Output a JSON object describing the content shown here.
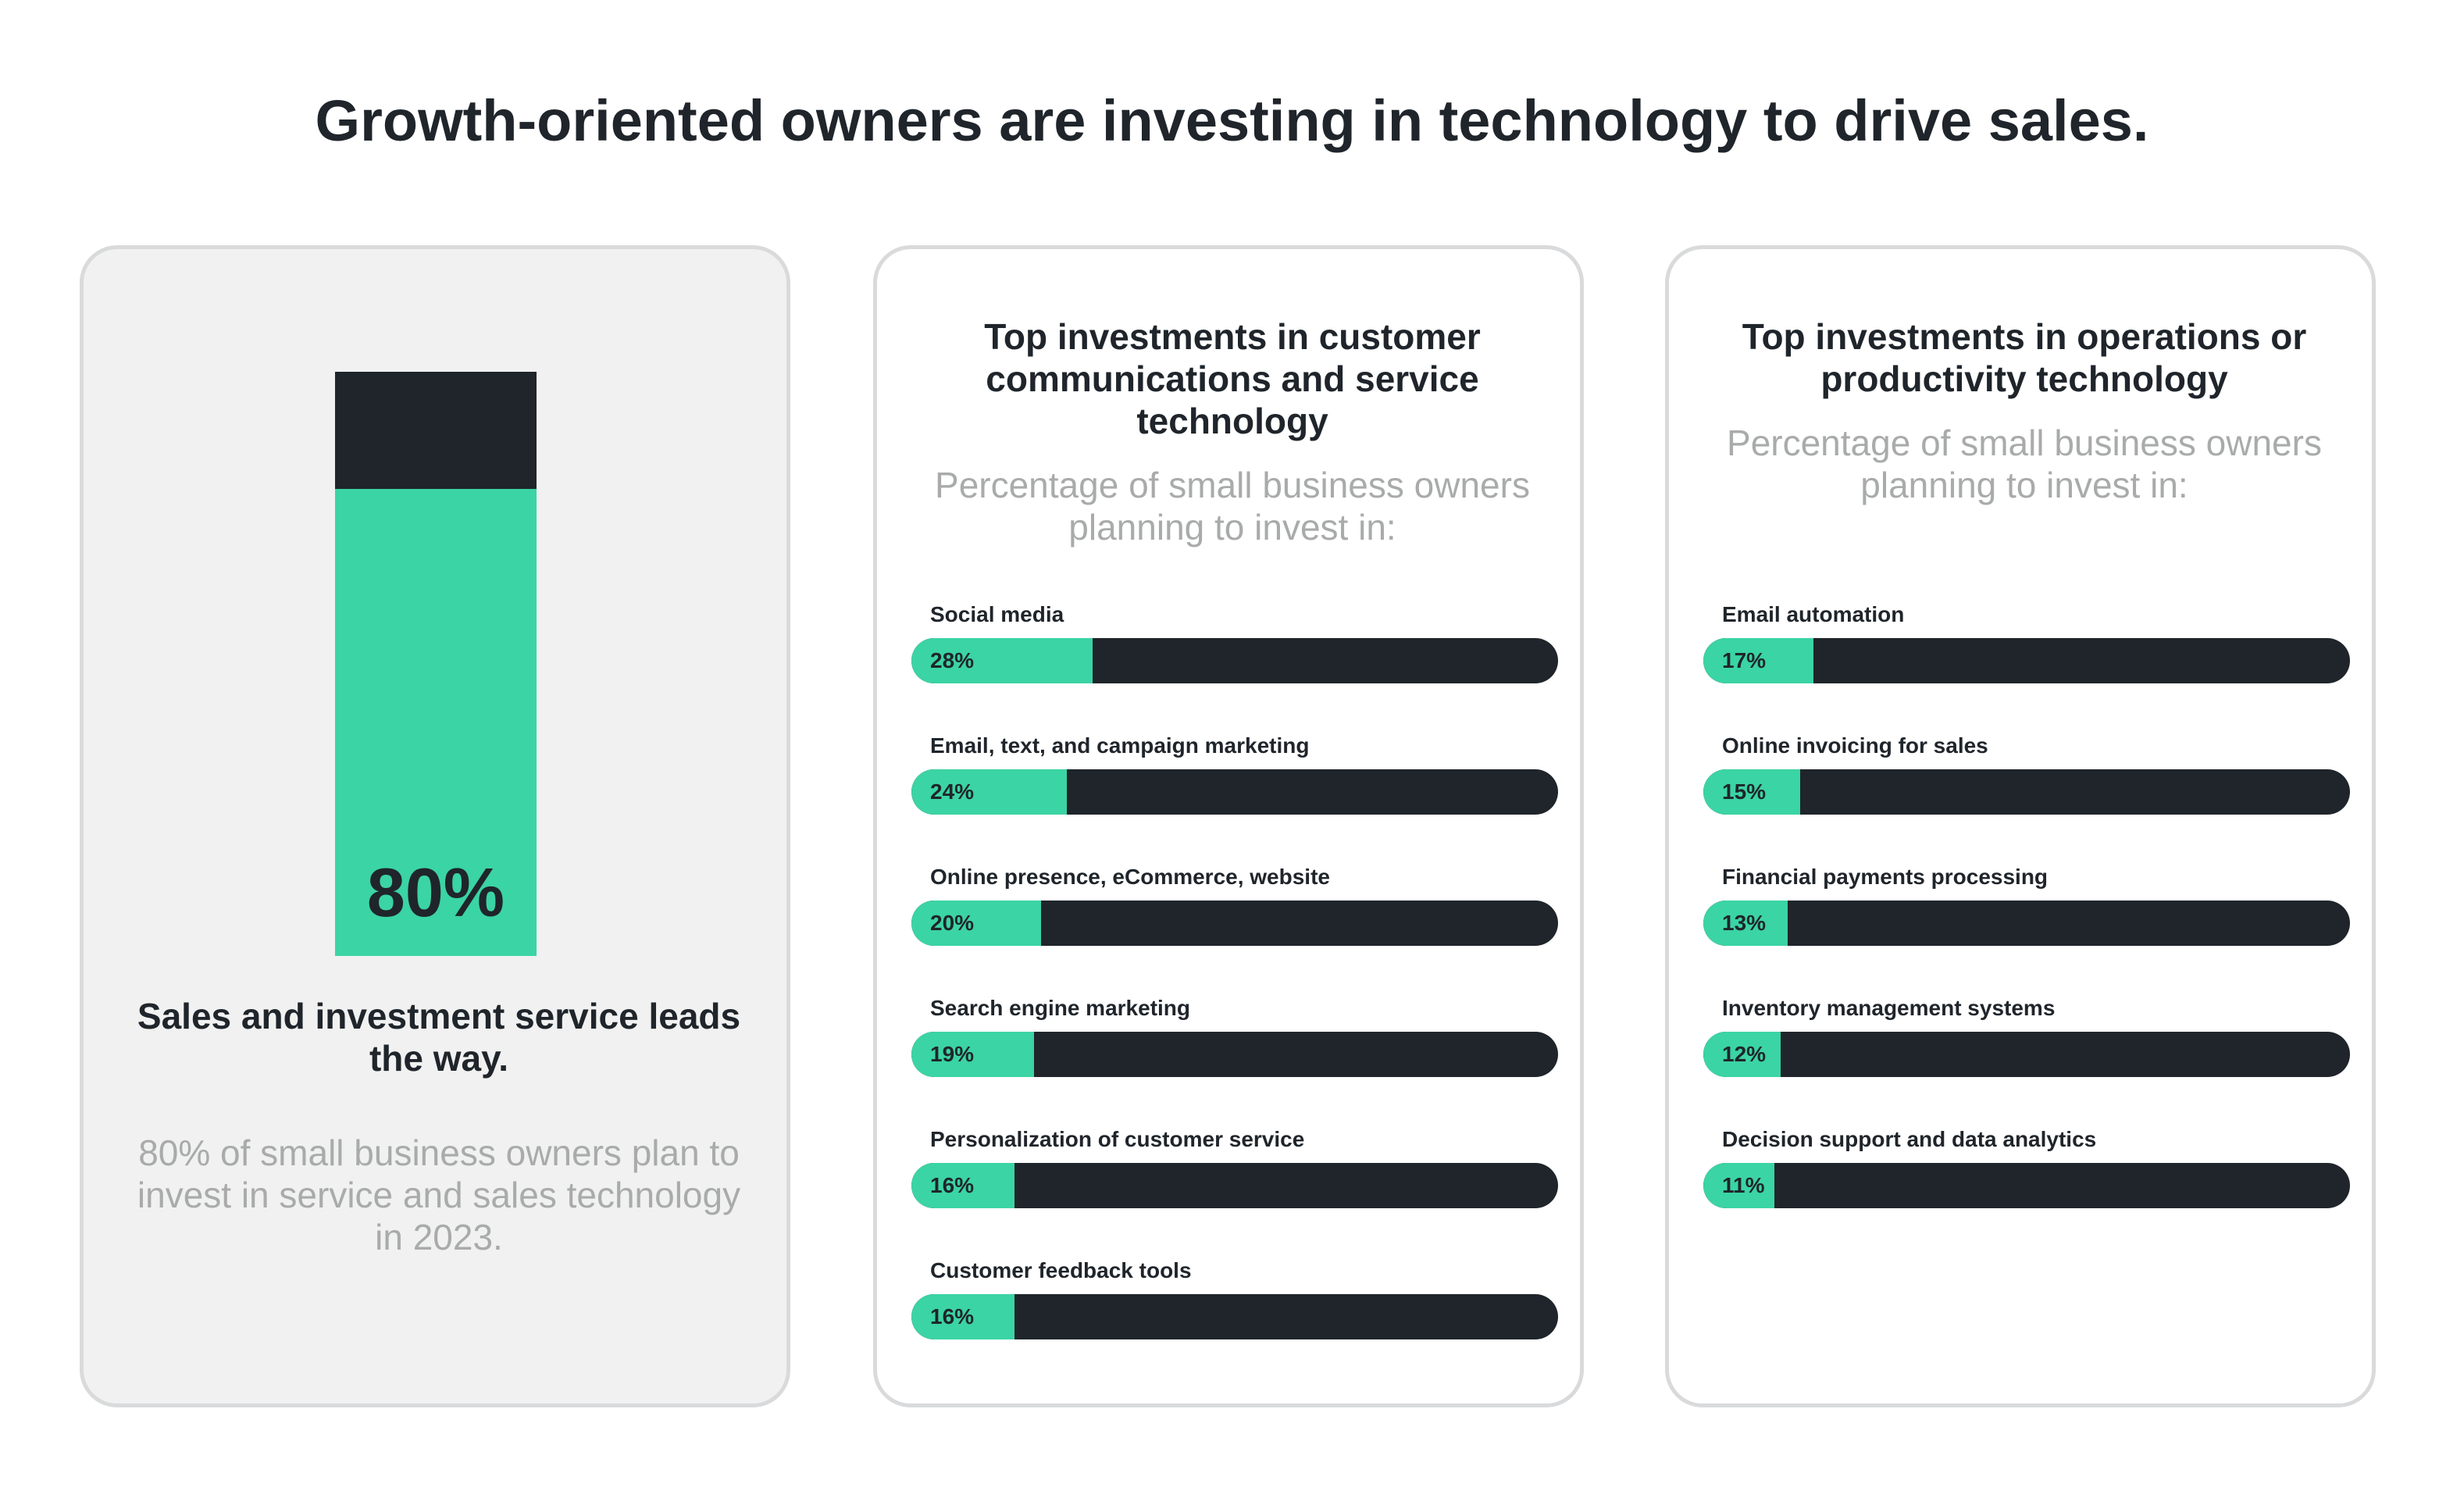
{
  "title": "Growth-oriented owners are investing in technology to drive sales.",
  "colors": {
    "accent": "#3bd4a4",
    "dark": "#1f252b",
    "muted_text": "#a9abab",
    "card_gray": "#f0f1f0"
  },
  "left_card": {
    "value_label": "80%",
    "heading": "Sales and investment service leads the way.",
    "subtext": "80% of small business owners plan to invest in service and sales technology in 2023."
  },
  "mid_card": {
    "title": "Top investments in customer communications and service technology",
    "subtitle": "Percentage of small business owners planning to invest in:"
  },
  "right_card": {
    "title": "Top investments in operations or productivity technology",
    "subtitle": "Percentage of small business owners planning to invest in:"
  },
  "chart_data": [
    {
      "type": "bar",
      "orientation": "vertical",
      "categories": [
        ""
      ],
      "values": [
        80
      ],
      "value_labels": [
        "80%"
      ],
      "ylim": [
        0,
        100
      ]
    },
    {
      "type": "bar",
      "orientation": "horizontal",
      "title": "Top investments in customer communications and service technology",
      "subtitle": "Percentage of small business owners planning to invest in:",
      "categories": [
        "Social media",
        "Email, text, and campaign marketing",
        "Online presence, eCommerce, website",
        "Search engine marketing",
        "Personalization of customer service",
        "Customer feedback tools"
      ],
      "values": [
        28,
        24,
        20,
        19,
        16,
        16
      ],
      "value_labels": [
        "28%",
        "24%",
        "20%",
        "19%",
        "16%",
        "16%"
      ],
      "xlim": [
        0,
        100
      ]
    },
    {
      "type": "bar",
      "orientation": "horizontal",
      "title": "Top investments in operations or productivity technology",
      "subtitle": "Percentage of small business owners planning to invest in:",
      "categories": [
        "Email automation",
        "Online invoicing for sales",
        "Financial payments processing",
        "Inventory management systems",
        "Decision support and data analytics"
      ],
      "values": [
        17,
        15,
        13,
        12,
        11
      ],
      "value_labels": [
        "17%",
        "15%",
        "13%",
        "12%",
        "11%"
      ],
      "xlim": [
        0,
        100
      ]
    }
  ]
}
